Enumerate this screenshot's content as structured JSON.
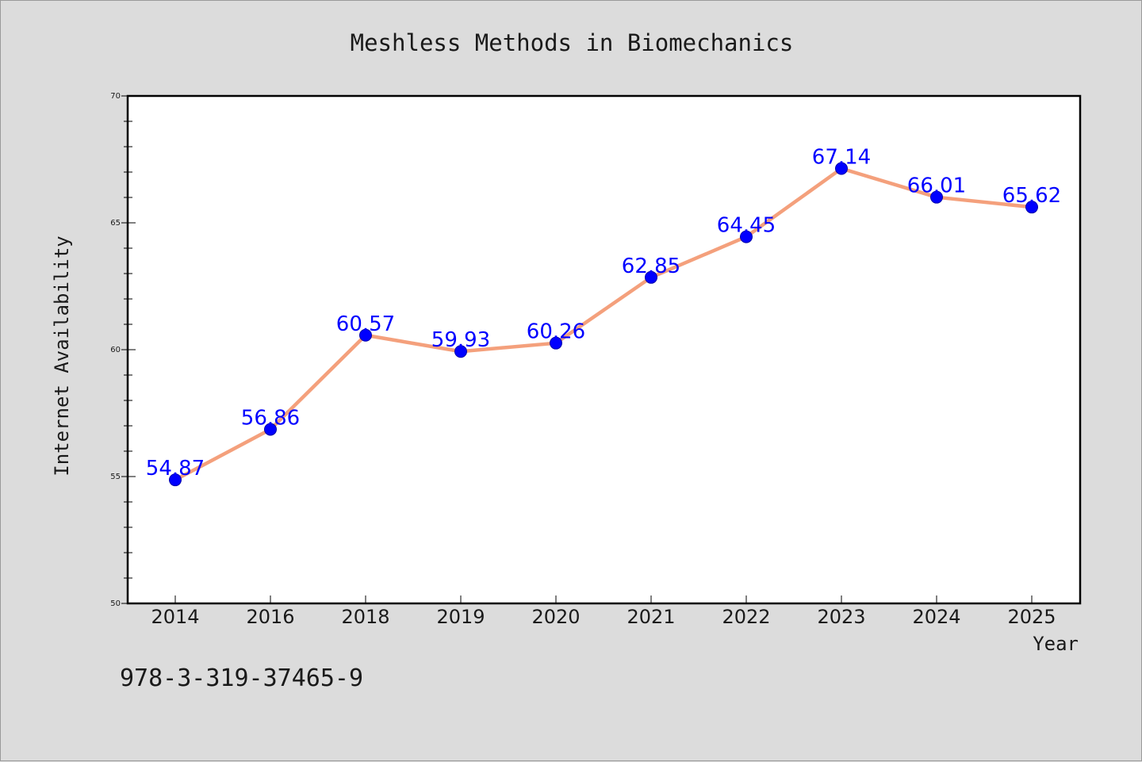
{
  "colors": {
    "background": "#dcdcdc",
    "plot_area": "#ffffff",
    "line": "#f4a07c",
    "marker": "#0000ff",
    "marker_edge": "#0000aa",
    "data_label": "#0000ff",
    "axis": "#000000"
  },
  "footer": {
    "isbn": "978-3-319-37465-9"
  },
  "chart_data": {
    "type": "line",
    "title": "Meshless Methods in Biomechanics",
    "xlabel": "Year",
    "ylabel": "Internet Availability",
    "categories": [
      "2014",
      "2016",
      "2018",
      "2019",
      "2020",
      "2021",
      "2022",
      "2023",
      "2024",
      "2025"
    ],
    "series": [
      {
        "values": [
          54.87,
          56.86,
          60.57,
          59.93,
          60.26,
          62.85,
          64.45,
          67.14,
          66.01,
          65.62
        ],
        "data_labels": [
          "54.87",
          "56.86",
          "60.57",
          "59.93",
          "60.26",
          "62.85",
          "64.45",
          "67.14",
          "66.01",
          "65.62"
        ]
      }
    ],
    "ylim": [
      50,
      70
    ],
    "yticks": [
      "50",
      "55",
      "60",
      "65",
      "70"
    ],
    "y_minor_step": 1,
    "grid": false,
    "legend": "none",
    "markers": true
  }
}
